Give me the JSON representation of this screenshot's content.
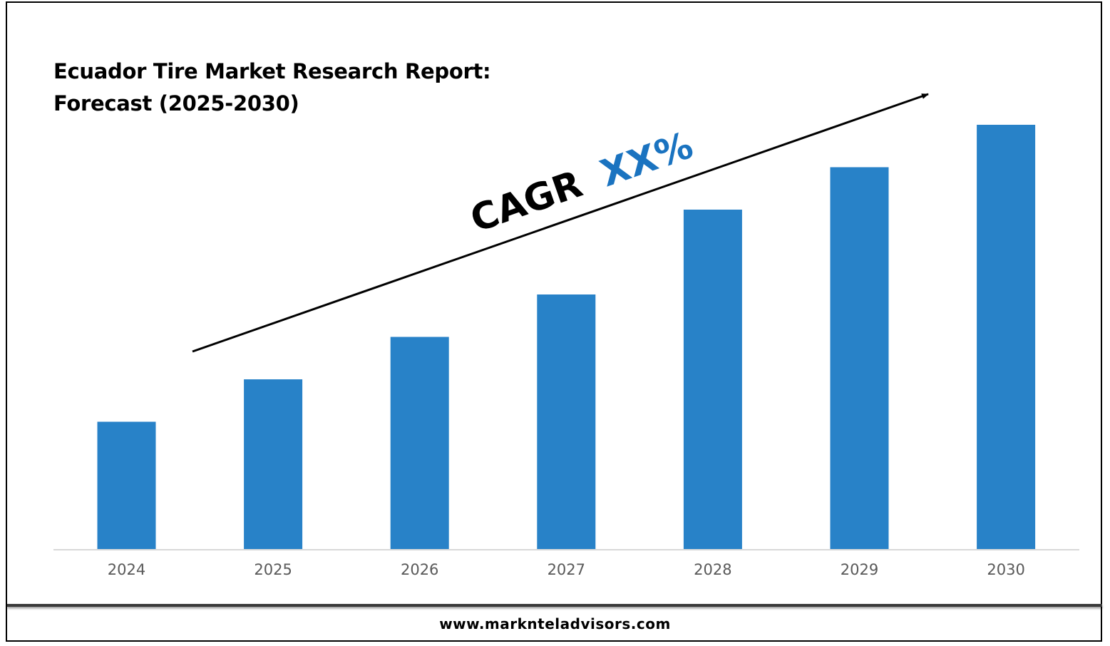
{
  "chart_data": {
    "type": "bar",
    "title_line1": "Ecuador Tire Market Research Report:",
    "title_line2": "Forecast (2025-2030)",
    "categories": [
      "2024",
      "2025",
      "2026",
      "2027",
      "2028",
      "2029",
      "2030"
    ],
    "values": [
      30,
      40,
      50,
      60,
      80,
      90,
      100
    ],
    "ylim": [
      0,
      100
    ],
    "bar_color": "#2882c8",
    "annotation": {
      "prefix": "CAGR",
      "value": "XX%",
      "prefix_color": "#000000",
      "value_color": "#1a73c0"
    }
  },
  "footer": {
    "website": "www.marknteladvisors.com"
  }
}
